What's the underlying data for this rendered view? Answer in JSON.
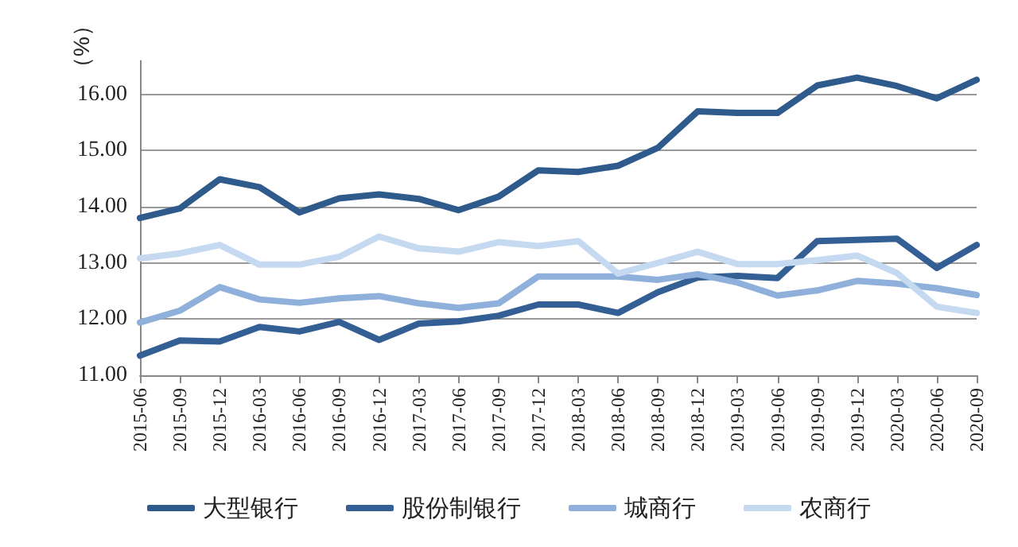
{
  "chart_data": {
    "type": "line",
    "ylabel": "（%）",
    "categories": [
      "2015-06",
      "2015-09",
      "2015-12",
      "2016-03",
      "2016-06",
      "2016-09",
      "2016-12",
      "2017-03",
      "2017-06",
      "2017-09",
      "2017-12",
      "2018-03",
      "2018-06",
      "2018-09",
      "2018-12",
      "2019-03",
      "2019-06",
      "2019-09",
      "2019-12",
      "2020-03",
      "2020-06",
      "2020-09"
    ],
    "series": [
      {
        "name": "大型银行",
        "color": "#2e5a8c",
        "values": [
          13.8,
          13.97,
          14.49,
          14.35,
          13.9,
          14.15,
          14.22,
          14.14,
          13.94,
          14.18,
          14.65,
          14.62,
          14.73,
          15.05,
          15.7,
          15.67,
          15.67,
          16.16,
          16.3,
          16.15,
          15.93,
          16.26
        ]
      },
      {
        "name": "股份制银行",
        "color": "#335f95",
        "values": [
          11.35,
          11.62,
          11.6,
          11.86,
          11.78,
          11.95,
          11.63,
          11.92,
          11.96,
          12.06,
          12.26,
          12.26,
          12.11,
          12.48,
          12.74,
          12.77,
          12.73,
          13.39,
          13.41,
          13.43,
          12.91,
          13.32
        ]
      },
      {
        "name": "城商行",
        "color": "#8fb0da",
        "values": [
          11.94,
          12.15,
          12.57,
          12.35,
          12.29,
          12.37,
          12.41,
          12.28,
          12.2,
          12.28,
          12.76,
          12.76,
          12.76,
          12.7,
          12.8,
          12.65,
          12.42,
          12.51,
          12.68,
          12.63,
          12.55,
          12.43
        ]
      },
      {
        "name": "农商行",
        "color": "#c5d9f1",
        "values": [
          13.08,
          13.17,
          13.32,
          12.97,
          12.97,
          13.11,
          13.47,
          13.26,
          13.2,
          13.37,
          13.3,
          13.39,
          12.81,
          13.0,
          13.2,
          12.98,
          12.98,
          13.05,
          13.13,
          12.82,
          12.22,
          12.11
        ]
      }
    ],
    "ylim": [
      11,
      16.6
    ],
    "yticks": [
      {
        "value": 11,
        "label": "11.00"
      },
      {
        "value": 12,
        "label": "12.00"
      },
      {
        "value": 13,
        "label": "13.00"
      },
      {
        "value": 14,
        "label": "14.00"
      },
      {
        "value": 15,
        "label": "15.00"
      },
      {
        "value": 16,
        "label": "16.00"
      }
    ],
    "grid": "y",
    "legend": "bottom",
    "marker": "none",
    "line_style": "solid"
  }
}
